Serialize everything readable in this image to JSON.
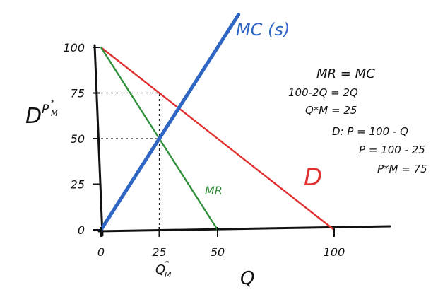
{
  "chart_data": {
    "type": "line",
    "xlabel": "Q",
    "ylabel_letter": "P",
    "ylabel_sub": "M",
    "x_ticks": [
      {
        "value": 0,
        "label": "0"
      },
      {
        "value": 25,
        "label": "25"
      },
      {
        "value": 50,
        "label": "50"
      },
      {
        "value": 100,
        "label": "100"
      }
    ],
    "y_ticks": [
      {
        "value": 0,
        "label": "0"
      },
      {
        "value": 25,
        "label": "25"
      },
      {
        "value": 50,
        "label": "50"
      },
      {
        "value": 75,
        "label": "75"
      },
      {
        "value": 100,
        "label": "100"
      }
    ],
    "xlim": [
      0,
      120
    ],
    "ylim": [
      0,
      118
    ],
    "series": [
      {
        "name": "D",
        "color": "#e03131",
        "points": [
          [
            0,
            100
          ],
          [
            100,
            0
          ]
        ]
      },
      {
        "name": "MR",
        "color": "#2f8f3a",
        "points": [
          [
            0,
            100
          ],
          [
            50,
            0
          ]
        ]
      },
      {
        "name": "MC (s)",
        "color": "#2f66c4",
        "points": [
          [
            0,
            0
          ],
          [
            59,
            118
          ]
        ]
      }
    ],
    "guides": [
      {
        "points": [
          [
            0,
            75
          ],
          [
            25,
            75
          ],
          [
            25,
            0
          ]
        ]
      },
      {
        "points": [
          [
            0,
            50
          ],
          [
            25,
            50
          ]
        ]
      }
    ],
    "q_star_label": "Q",
    "q_star_sub": "M",
    "notes": [
      "MR = MC",
      "100-2Q = 2Q",
      "Q*M = 25",
      "D: P = 100 - Q",
      "P = 100 - 25",
      "P*M = 75"
    ],
    "d_axis_mark": "D"
  }
}
